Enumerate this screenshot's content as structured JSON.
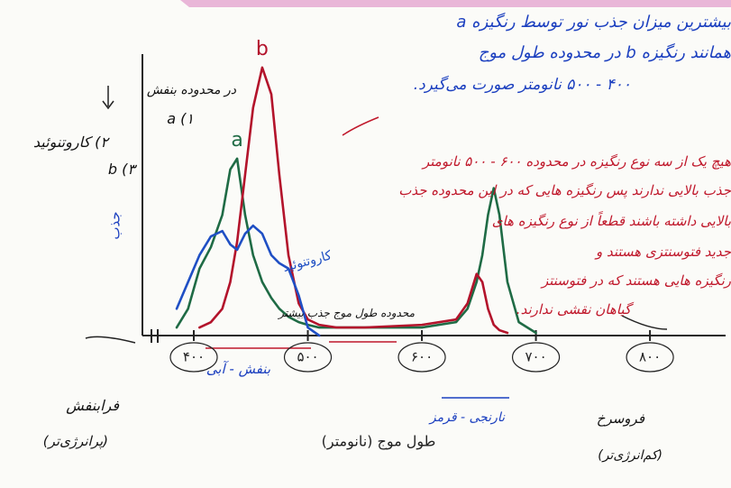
{
  "chart_data": {
    "type": "line",
    "x_label": "طول موج (نانومتر)",
    "y_label": "جذب",
    "x": [
      385,
      395,
      405,
      415,
      425,
      432,
      438,
      445,
      452,
      460,
      468,
      475,
      483,
      492,
      500,
      510,
      525,
      550,
      600,
      630,
      640,
      648,
      653,
      658,
      663,
      668,
      675,
      685,
      700
    ],
    "series": [
      {
        "name": "a",
        "color": "#1f6b45",
        "values": [
          0.03,
          0.1,
          0.25,
          0.33,
          0.45,
          0.62,
          0.66,
          0.45,
          0.3,
          0.2,
          0.14,
          0.1,
          0.07,
          0.05,
          0.04,
          0.03,
          0.03,
          0.03,
          0.03,
          0.05,
          0.1,
          0.2,
          0.3,
          0.45,
          0.55,
          0.45,
          0.2,
          0.05,
          0.01
        ]
      },
      {
        "name": "b",
        "color": "#b3132b",
        "values": [
          null,
          null,
          0.03,
          0.05,
          0.1,
          0.2,
          0.35,
          0.6,
          0.85,
          1.0,
          0.9,
          0.6,
          0.3,
          0.12,
          0.06,
          0.04,
          0.03,
          0.03,
          0.04,
          0.06,
          0.12,
          0.23,
          0.2,
          0.1,
          0.04,
          0.02,
          0.01,
          null,
          null
        ]
      },
      {
        "name": "کاروتنوئید",
        "color": "#1f4fc4",
        "values": [
          0.1,
          0.2,
          0.3,
          0.37,
          0.39,
          0.34,
          0.32,
          0.38,
          0.41,
          0.38,
          0.3,
          0.27,
          0.25,
          0.15,
          0.03,
          0.0,
          null,
          null,
          null,
          null,
          null,
          null,
          null,
          null,
          null,
          null,
          null,
          null,
          null
        ]
      }
    ],
    "xlim": [
      360,
      860
    ],
    "ylim": [
      0,
      1.05
    ],
    "xticks": [
      {
        "value": 400,
        "label": "۴۰۰"
      },
      {
        "value": 500,
        "label": "۵۰۰"
      },
      {
        "value": 600,
        "label": "۶۰۰"
      },
      {
        "value": 700,
        "label": "۷۰۰"
      },
      {
        "value": 800,
        "label": "۸۰۰"
      }
    ],
    "annotations": [
      {
        "text": "بیشترین میزان جذب نور توسط رنگیزه a",
        "color": "#1b3fbf"
      },
      {
        "text": "همانند رنگیزه b در محدوده طول موج",
        "color": "#1b3fbf"
      },
      {
        "text": "۴۰۰ - ۵۰۰ نانومتر صورت می‌گیرد.",
        "color": "#1b3fbf"
      },
      {
        "text": "هیچ یک از سه نوع رنگیزه در محدوده ۶۰۰ - ۵۰۰ نانومتر",
        "color": "#c0182b"
      },
      {
        "text": "جذب بالایی ندارند پس رنگیزه هایی که در این محدوده جذب",
        "color": "#c0182b"
      },
      {
        "text": "بالایی داشته باشند قطعاً از نوع رنگیزه های",
        "color": "#c0182b"
      },
      {
        "text": "جدید فتوسنتزی هستند و",
        "color": "#c0182b"
      },
      {
        "text": "رنگیزه هایی هستند که در فتوسنتز",
        "color": "#c0182b"
      },
      {
        "text": "گیاهان نقشی ندارند.",
        "color": "#c0182b"
      },
      {
        "text": "در محدوده بنفش",
        "color": "#111111"
      },
      {
        "text": "۱) a",
        "color": "#111111"
      },
      {
        "text": "۲) کاروتنوئید",
        "color": "#111111"
      },
      {
        "text": "۳) b",
        "color": "#111111"
      },
      {
        "text": "محدوده طول موج جذب بیشتر",
        "color": "#111111"
      },
      {
        "text": "فرابنفش",
        "color": "#111111"
      },
      {
        "text": "(پرانرژی‌تر)",
        "color": "#111111"
      },
      {
        "text": "بنفش - آبی",
        "color": "#1b3fbf"
      },
      {
        "text": "نارنجی - قرمز",
        "color": "#1b3fbf"
      },
      {
        "text": "فروسرخ",
        "color": "#111111"
      },
      {
        "text": "(کم‌انرژی‌تر)",
        "color": "#111111"
      }
    ]
  }
}
